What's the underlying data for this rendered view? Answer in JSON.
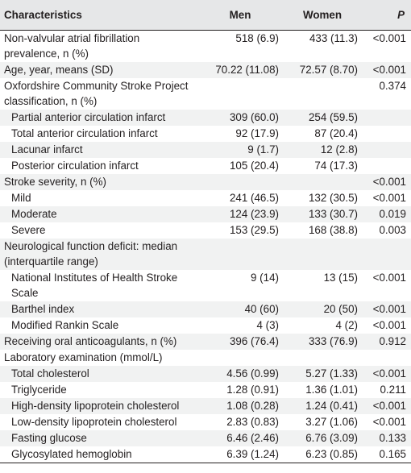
{
  "headers": {
    "characteristics": "Characteristics",
    "men": "Men",
    "women": "Women",
    "p": "P"
  },
  "rows": [
    {
      "label": "Non-valvular atrial fibrillation prevalence, n (%)",
      "men": "518 (6.9)",
      "women": "433 (11.3)",
      "p": "<0.001"
    },
    {
      "label": "Age, year, means (SD)",
      "men": "70.22 (11.08)",
      "women": "72.57 (8.70)",
      "p": "<0.001"
    },
    {
      "label": "Oxfordshire Community Stroke Project classification, n (%)",
      "men": "",
      "women": "",
      "p": "0.374"
    },
    {
      "label": "Partial anterior circulation infarct",
      "men": "309 (60.0)",
      "women": "254 (59.5)",
      "p": ""
    },
    {
      "label": "Total anterior circulation infarct",
      "men": "92 (17.9)",
      "women": "87 (20.4)",
      "p": ""
    },
    {
      "label": "Lacunar infarct",
      "men": "9 (1.7)",
      "women": "12 (2.8)",
      "p": ""
    },
    {
      "label": "Posterior circulation infarct",
      "men": "105 (20.4)",
      "women": "74 (17.3)",
      "p": ""
    },
    {
      "label": "Stroke severity, n (%)",
      "men": "",
      "women": "",
      "p": "<0.001"
    },
    {
      "label": "Mild",
      "men": "241 (46.5)",
      "women": "132 (30.5)",
      "p": "<0.001"
    },
    {
      "label": "Moderate",
      "men": "124 (23.9)",
      "women": "133 (30.7)",
      "p": "0.019"
    },
    {
      "label": "Severe",
      "men": "153 (29.5)",
      "women": "168 (38.8)",
      "p": "0.003"
    },
    {
      "label": "Neurological function deficit: median (interquartile range)",
      "men": "",
      "women": "",
      "p": ""
    },
    {
      "label": "National Institutes of Health Stroke Scale",
      "men": "9 (14)",
      "women": "13 (15)",
      "p": "<0.001"
    },
    {
      "label": "Barthel index",
      "men": "40 (60)",
      "women": "20 (50)",
      "p": "<0.001"
    },
    {
      "label": "Modified Rankin Scale",
      "men": "4 (3)",
      "women": "4 (2)",
      "p": "<0.001"
    },
    {
      "label": "Receiving oral anticoagulants, n (%)",
      "men": "396 (76.4)",
      "women": "333 (76.9)",
      "p": "0.912"
    },
    {
      "label": "Laboratory examination (mmol/L)",
      "men": "",
      "women": "",
      "p": ""
    },
    {
      "label": "Total cholesterol",
      "men": "4.56 (0.99)",
      "women": "5.27 (1.33)",
      "p": "<0.001"
    },
    {
      "label": "Triglyceride",
      "men": "1.28 (0.91)",
      "women": "1.36 (1.01)",
      "p": "0.211"
    },
    {
      "label": "High-density lipoprotein cholesterol",
      "men": "1.08 (0.28)",
      "women": "1.24 (0.41)",
      "p": "<0.001"
    },
    {
      "label": "Low-density lipoprotein cholesterol",
      "men": "2.83 (0.83)",
      "women": "3.27 (1.06)",
      "p": "<0.001"
    },
    {
      "label": "Fasting glucose",
      "men": "6.46 (2.46)",
      "women": "6.76 (3.09)",
      "p": "0.133"
    },
    {
      "label": "Glycosylated hemoglobin",
      "men": "6.39 (1.24)",
      "women": "6.23 (0.85)",
      "p": "0.165"
    }
  ]
}
